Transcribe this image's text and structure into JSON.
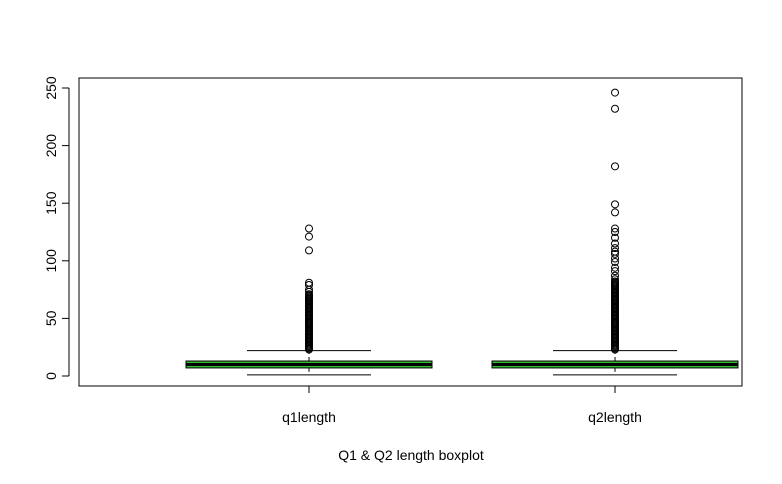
{
  "chart_data": {
    "type": "boxplot",
    "title": "",
    "xlabel": "Q1 & Q2 length boxplot",
    "ylabel": "",
    "ylim": [
      -10,
      255
    ],
    "yticks": [
      0,
      50,
      100,
      150,
      200,
      250
    ],
    "box_color": "#33bb33",
    "series": [
      {
        "name": "q1length",
        "whisker_low": 1,
        "q1": 7,
        "median": 10,
        "q3": 13,
        "whisker_high": 22,
        "outliers": [
          23,
          24,
          25,
          26,
          27,
          28,
          29,
          30,
          31,
          32,
          33,
          34,
          35,
          36,
          37,
          38,
          39,
          40,
          41,
          42,
          43,
          44,
          45,
          46,
          47,
          48,
          49,
          50,
          51,
          52,
          53,
          54,
          55,
          56,
          57,
          58,
          59,
          60,
          61,
          62,
          63,
          64,
          65,
          66,
          67,
          68,
          69,
          70,
          71,
          73,
          75,
          79,
          81,
          109,
          121,
          128
        ]
      },
      {
        "name": "q2length",
        "whisker_low": 1,
        "q1": 7,
        "median": 10,
        "q3": 13,
        "whisker_high": 22,
        "outliers": [
          23,
          24,
          25,
          26,
          27,
          28,
          29,
          30,
          31,
          32,
          33,
          34,
          35,
          36,
          37,
          38,
          39,
          40,
          41,
          42,
          43,
          44,
          45,
          46,
          47,
          48,
          49,
          50,
          51,
          52,
          53,
          54,
          55,
          56,
          57,
          58,
          59,
          60,
          61,
          62,
          63,
          64,
          65,
          66,
          67,
          68,
          69,
          70,
          71,
          72,
          73,
          74,
          75,
          76,
          77,
          78,
          79,
          80,
          81,
          82,
          84,
          87,
          91,
          94,
          99,
          102,
          106,
          108,
          111,
          115,
          120,
          125,
          128,
          142,
          149,
          182,
          232,
          246
        ]
      }
    ]
  }
}
